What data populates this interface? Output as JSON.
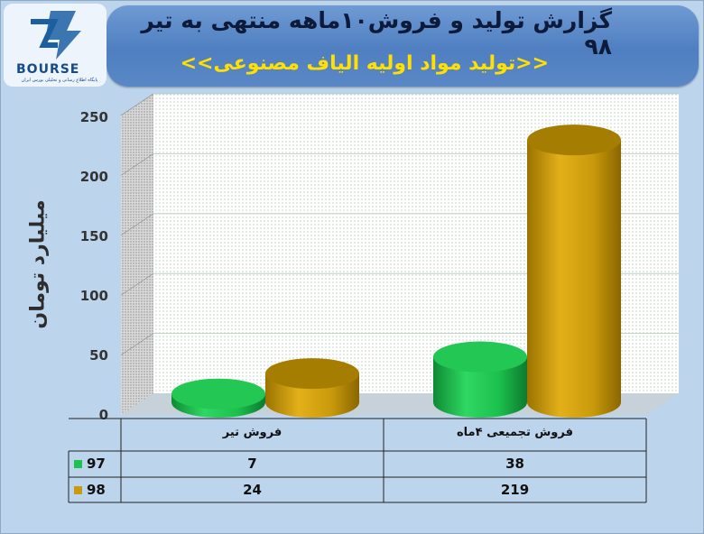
{
  "header": {
    "title": "گزارش تولید و فروش۱۰ماهه منتهی به تیر ۹۸",
    "subtitle": "<<تولید مواد اولیه الیاف مصنوعی>>"
  },
  "logo": {
    "text": "BOURSE",
    "caption": "پایگاه اطلاع رسانی و تحلیلی بورس ایران"
  },
  "colors": {
    "series_97": "#1fc24e",
    "series_98": "#c99a0b",
    "banner": "#5b8bcc",
    "background": "#bcd4ec"
  },
  "chart_data": {
    "type": "bar",
    "style": "3d-cylinder",
    "ylabel": "میلیارد تومان",
    "ylim": [
      0,
      250
    ],
    "yticks": [
      "0",
      "50",
      "100",
      "150",
      "200",
      "250"
    ],
    "categories": [
      "فروش تیر",
      "فروش تجمیعی ۴ماه"
    ],
    "series": [
      {
        "name": "97",
        "color": "#1fc24e",
        "values": [
          7,
          38
        ]
      },
      {
        "name": "98",
        "color": "#c99a0b",
        "values": [
          24,
          219
        ]
      }
    ],
    "table": {
      "rows": [
        {
          "label": "97",
          "cells": [
            "7",
            "38"
          ]
        },
        {
          "label": "98",
          "cells": [
            "24",
            "219"
          ]
        }
      ]
    }
  }
}
